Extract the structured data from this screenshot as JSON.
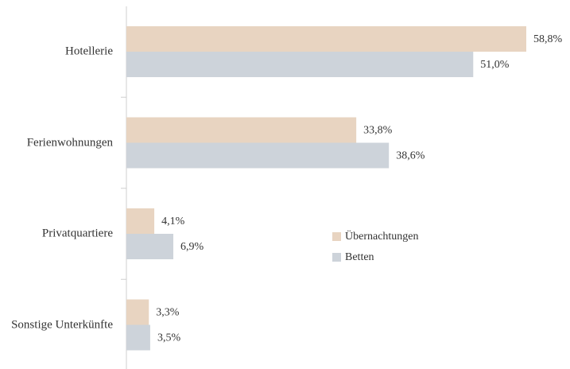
{
  "chart_data": {
    "type": "hbar",
    "categories": [
      "Hotellerie",
      "Ferienwohnungen",
      "Privatquartiere",
      "Sonstige Unterkünfte"
    ],
    "series": [
      {
        "name": "Übernachtungen",
        "color": "#e8d4c1",
        "values": [
          58.8,
          33.8,
          4.1,
          3.3
        ],
        "value_labels": [
          "58,8%",
          "33,8%",
          "4,1%",
          "3,3%"
        ]
      },
      {
        "name": "Betten",
        "color": "#cdd3da",
        "values": [
          51.0,
          38.6,
          6.9,
          3.5
        ],
        "value_labels": [
          "51,0%",
          "38,6%",
          "6,9%",
          "3,5%"
        ]
      }
    ]
  }
}
